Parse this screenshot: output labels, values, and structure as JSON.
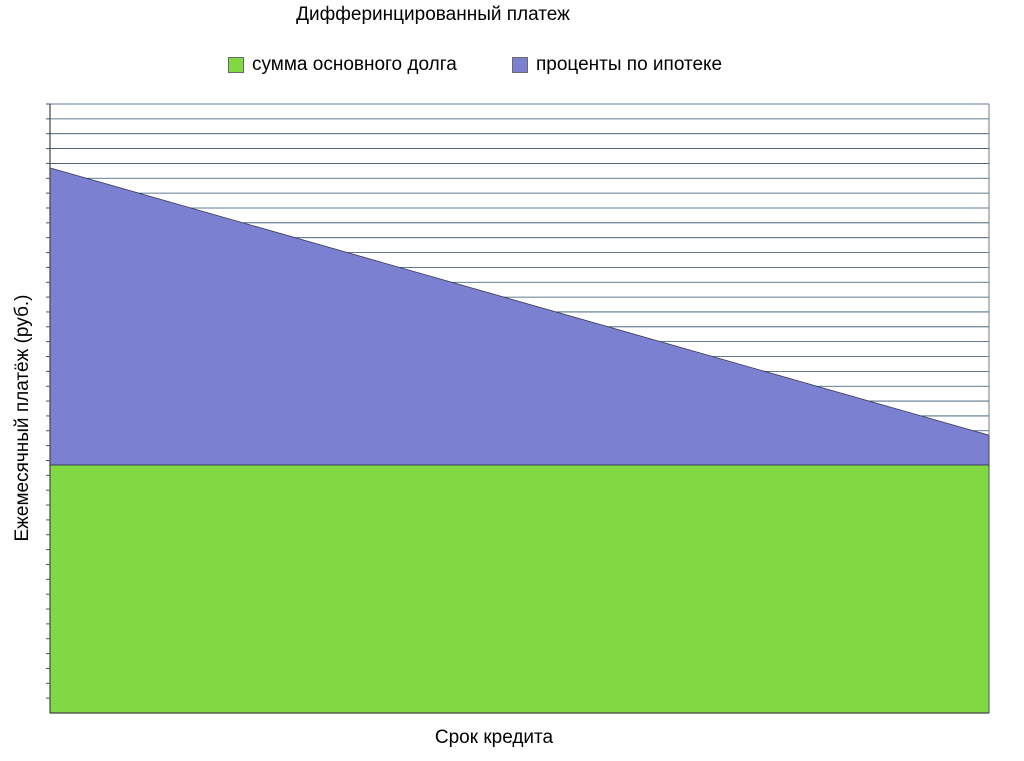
{
  "chart_data": {
    "type": "area",
    "title": "Дифферинцированный платеж",
    "xlabel": "Срок кредита",
    "ylabel": "Ежемесячный платёж (руб.)",
    "stacked": true,
    "grid": true,
    "legend_position": "top",
    "ylim": [
      0,
      41
    ],
    "x": [
      0,
      1
    ],
    "series": [
      {
        "name": "сумма основного долга",
        "color": "#80d943",
        "values": [
          16.7,
          16.7
        ]
      },
      {
        "name": "проценты по ипотеке",
        "color": "#7b80d0",
        "values": [
          20,
          2
        ]
      }
    ]
  }
}
